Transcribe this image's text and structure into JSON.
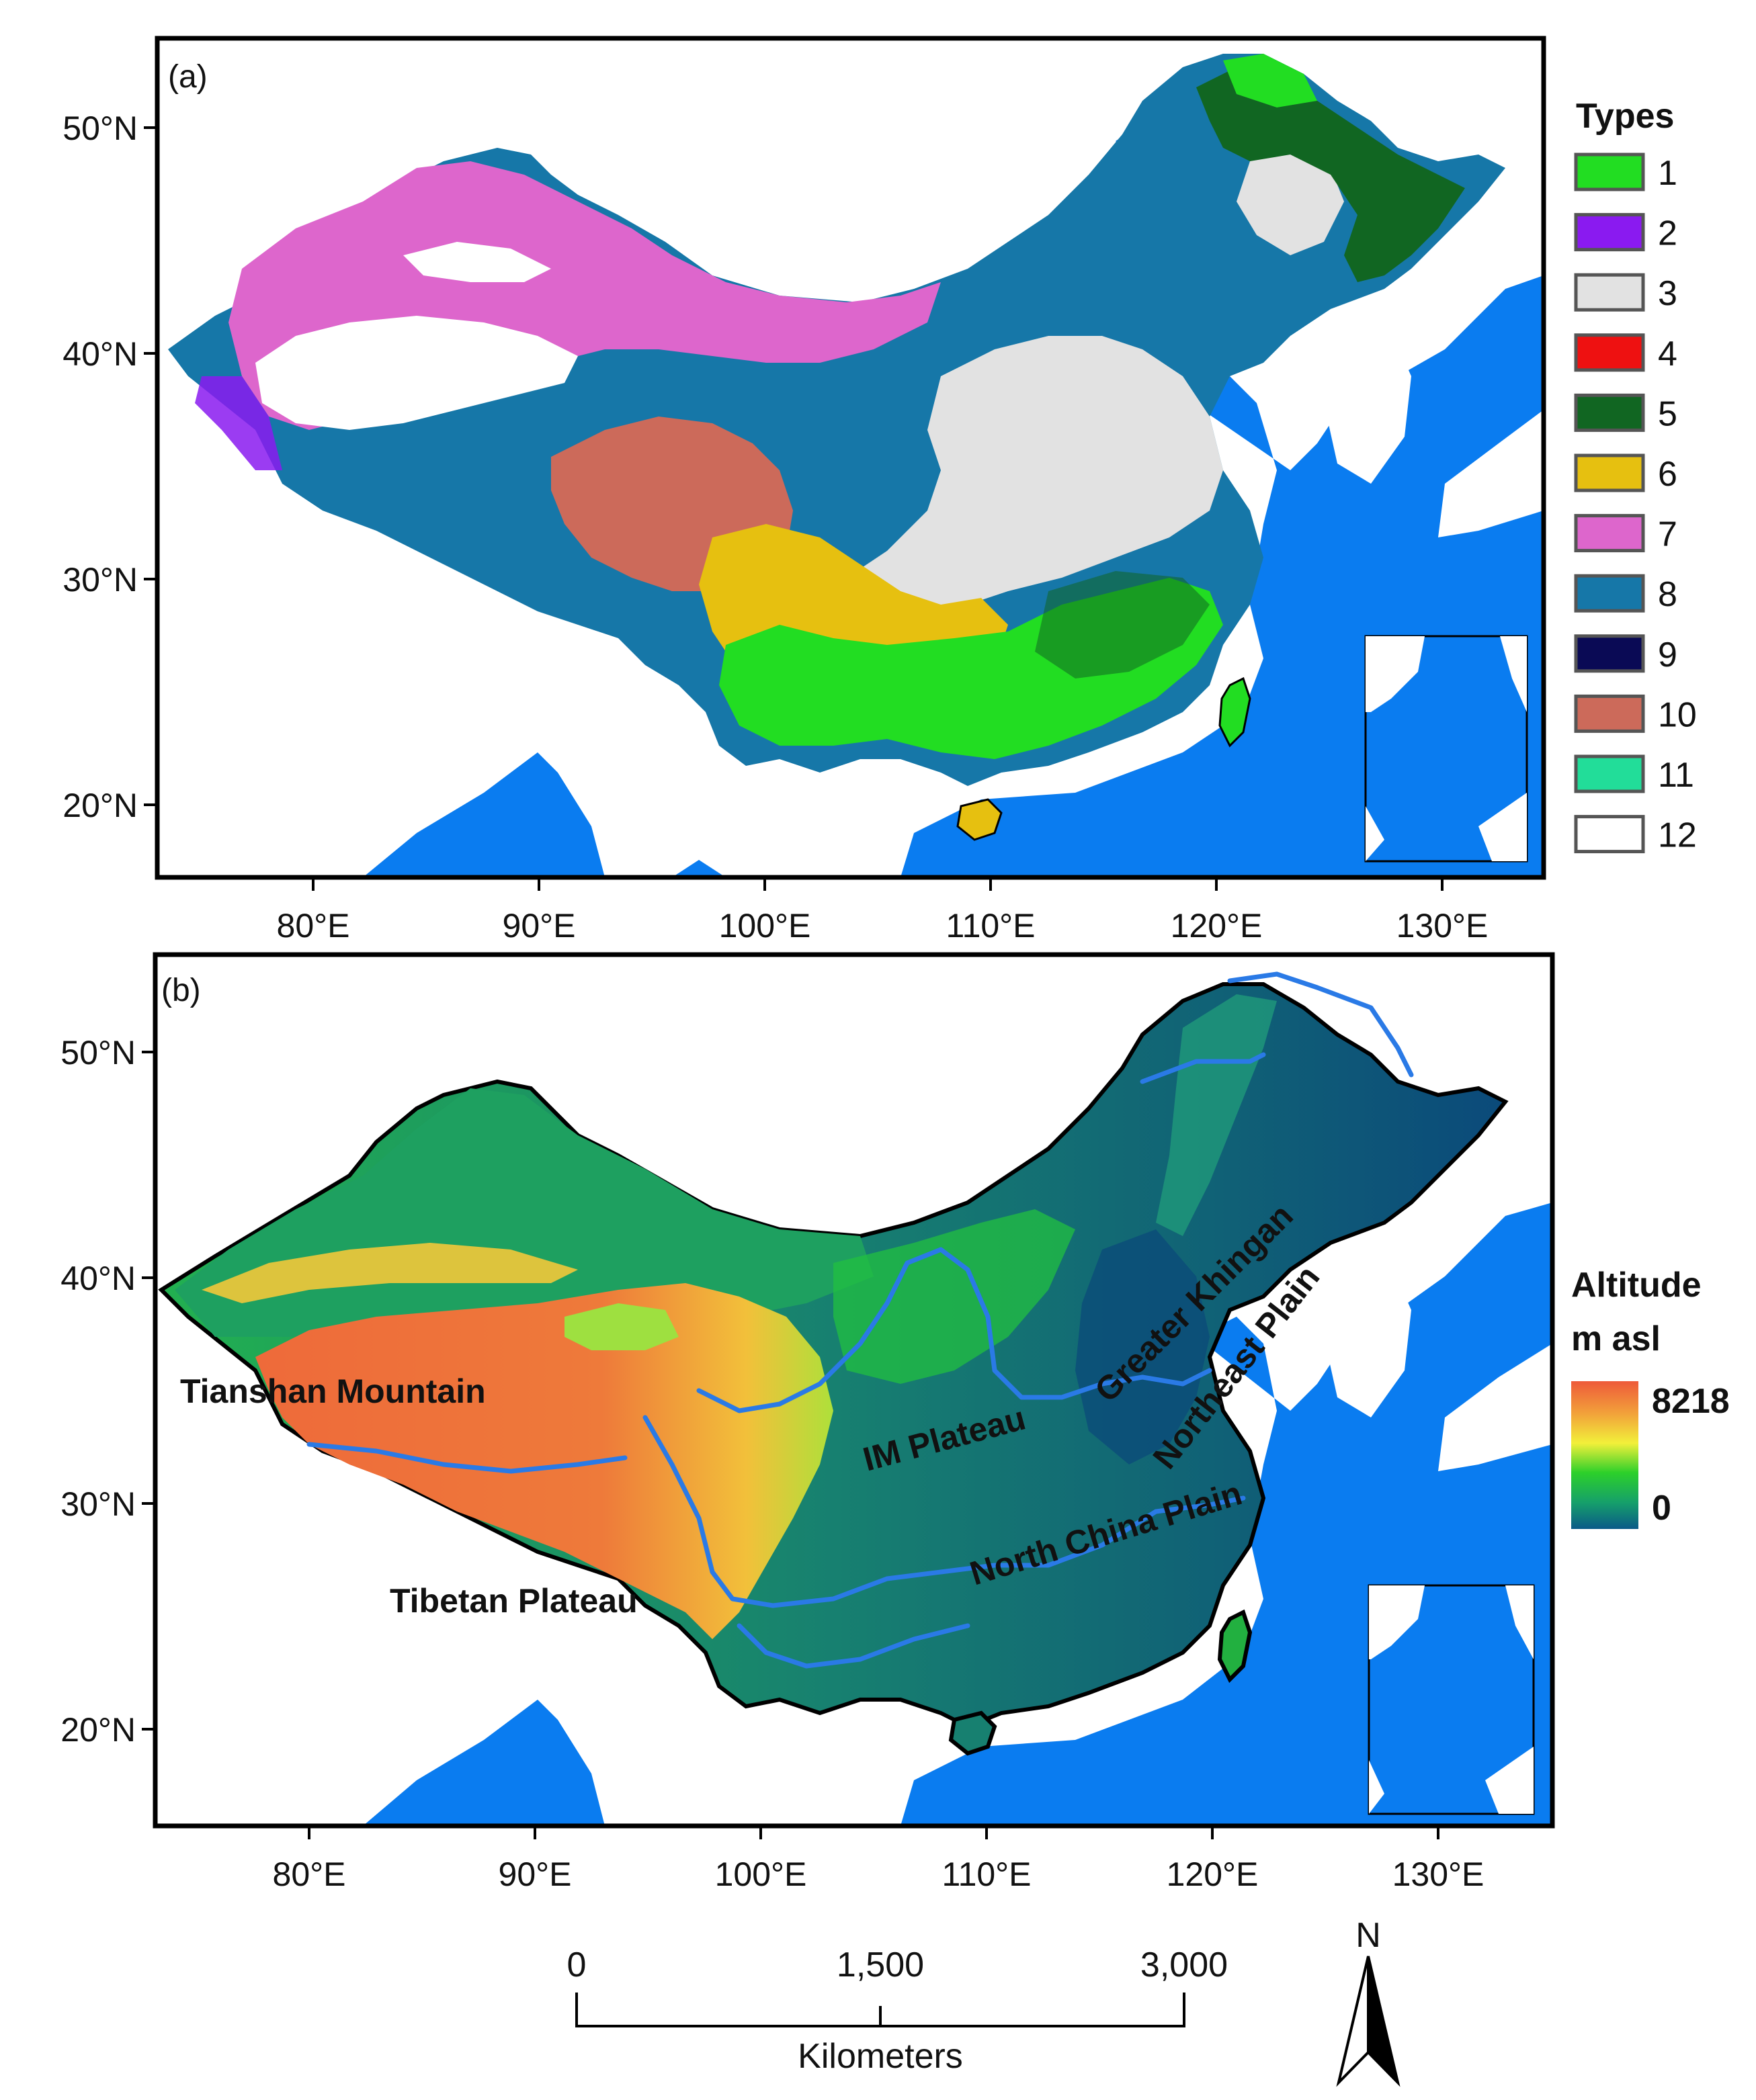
{
  "colors": {
    "ocean": "#0a7cf0",
    "frame": "#000000",
    "types": [
      "#22dd22",
      "#8a1af0",
      "#e2e2e2",
      "#ee1111",
      "#116622",
      "#e6c010",
      "#dd66cc",
      "#1677a8",
      "#0a0a55",
      "#cc6a5a",
      "#22dd99",
      "#ffffff"
    ],
    "altitude_gradient": [
      "#ee5a3a",
      "#f2a23a",
      "#f2f03a",
      "#2cd02a",
      "#16a06a",
      "#0a5a88"
    ]
  },
  "panels": {
    "a": {
      "label": "(a)",
      "lat_ticks": [
        "50°N",
        "40°N",
        "30°N",
        "20°N"
      ],
      "lon_ticks": [
        "80°E",
        "90°E",
        "100°E",
        "110°E",
        "120°E",
        "130°E"
      ],
      "legend": {
        "title": "Types",
        "items": [
          "1",
          "2",
          "3",
          "4",
          "5",
          "6",
          "7",
          "8",
          "9",
          "10",
          "11",
          "12"
        ]
      }
    },
    "b": {
      "label": "(b)",
      "lat_ticks": [
        "50°N",
        "40°N",
        "30°N",
        "20°N"
      ],
      "lon_ticks": [
        "80°E",
        "90°E",
        "100°E",
        "110°E",
        "120°E",
        "130°E"
      ],
      "legend": {
        "title_line1": "Altitude",
        "title_line2": "m asl",
        "max": "8218",
        "min": "0"
      },
      "regions": {
        "tianshan": "Tianshan Mountain",
        "tibetan": "Tibetan Plateau",
        "im": "IM Plateau",
        "khingan": "Greater Khingan",
        "northeast": "Northeast Plain",
        "northchina": "North China Plain"
      }
    }
  },
  "scale_bar": {
    "labels": [
      "0",
      "1,500",
      "3,000"
    ],
    "unit": "Kilometers"
  },
  "north_arrow": {
    "label": "N"
  }
}
